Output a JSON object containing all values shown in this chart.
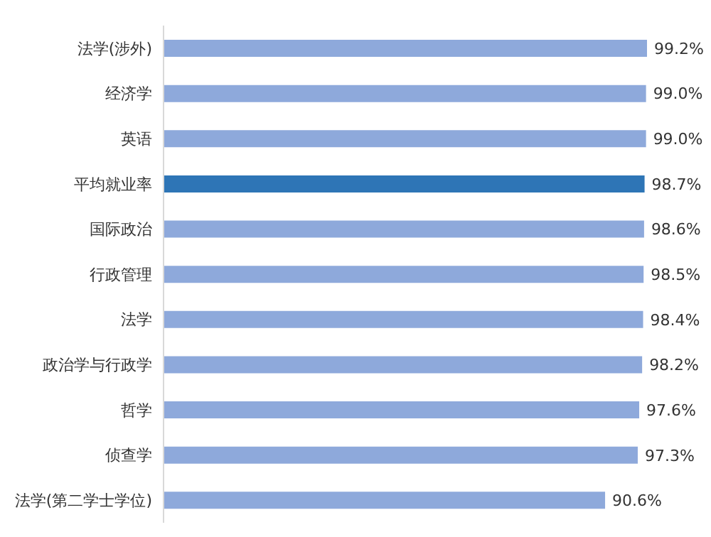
{
  "chart_data": {
    "type": "bar",
    "orientation": "horizontal",
    "categories": [
      "法学(涉外)",
      "经济学",
      "英语",
      "平均就业率",
      "国际政治",
      "行政管理",
      "法学",
      "政治学与行政学",
      "哲学",
      "侦查学",
      "法学(第二学士学位)"
    ],
    "values": [
      99.2,
      99.0,
      99.0,
      98.7,
      98.6,
      98.5,
      98.4,
      98.2,
      97.6,
      97.3,
      90.6
    ],
    "colors": [
      "#8ea9db",
      "#8ea9db",
      "#8ea9db",
      "#2e75b6",
      "#8ea9db",
      "#8ea9db",
      "#8ea9db",
      "#8ea9db",
      "#8ea9db",
      "#8ea9db",
      "#8ea9db"
    ],
    "value_labels": [
      "99.2%",
      "99.0%",
      "99.0%",
      "98.7%",
      "98.6%",
      "98.5%",
      "98.4%",
      "98.2%",
      "97.6%",
      "97.3%",
      "90.6%"
    ],
    "tick_labels": "y"
  }
}
